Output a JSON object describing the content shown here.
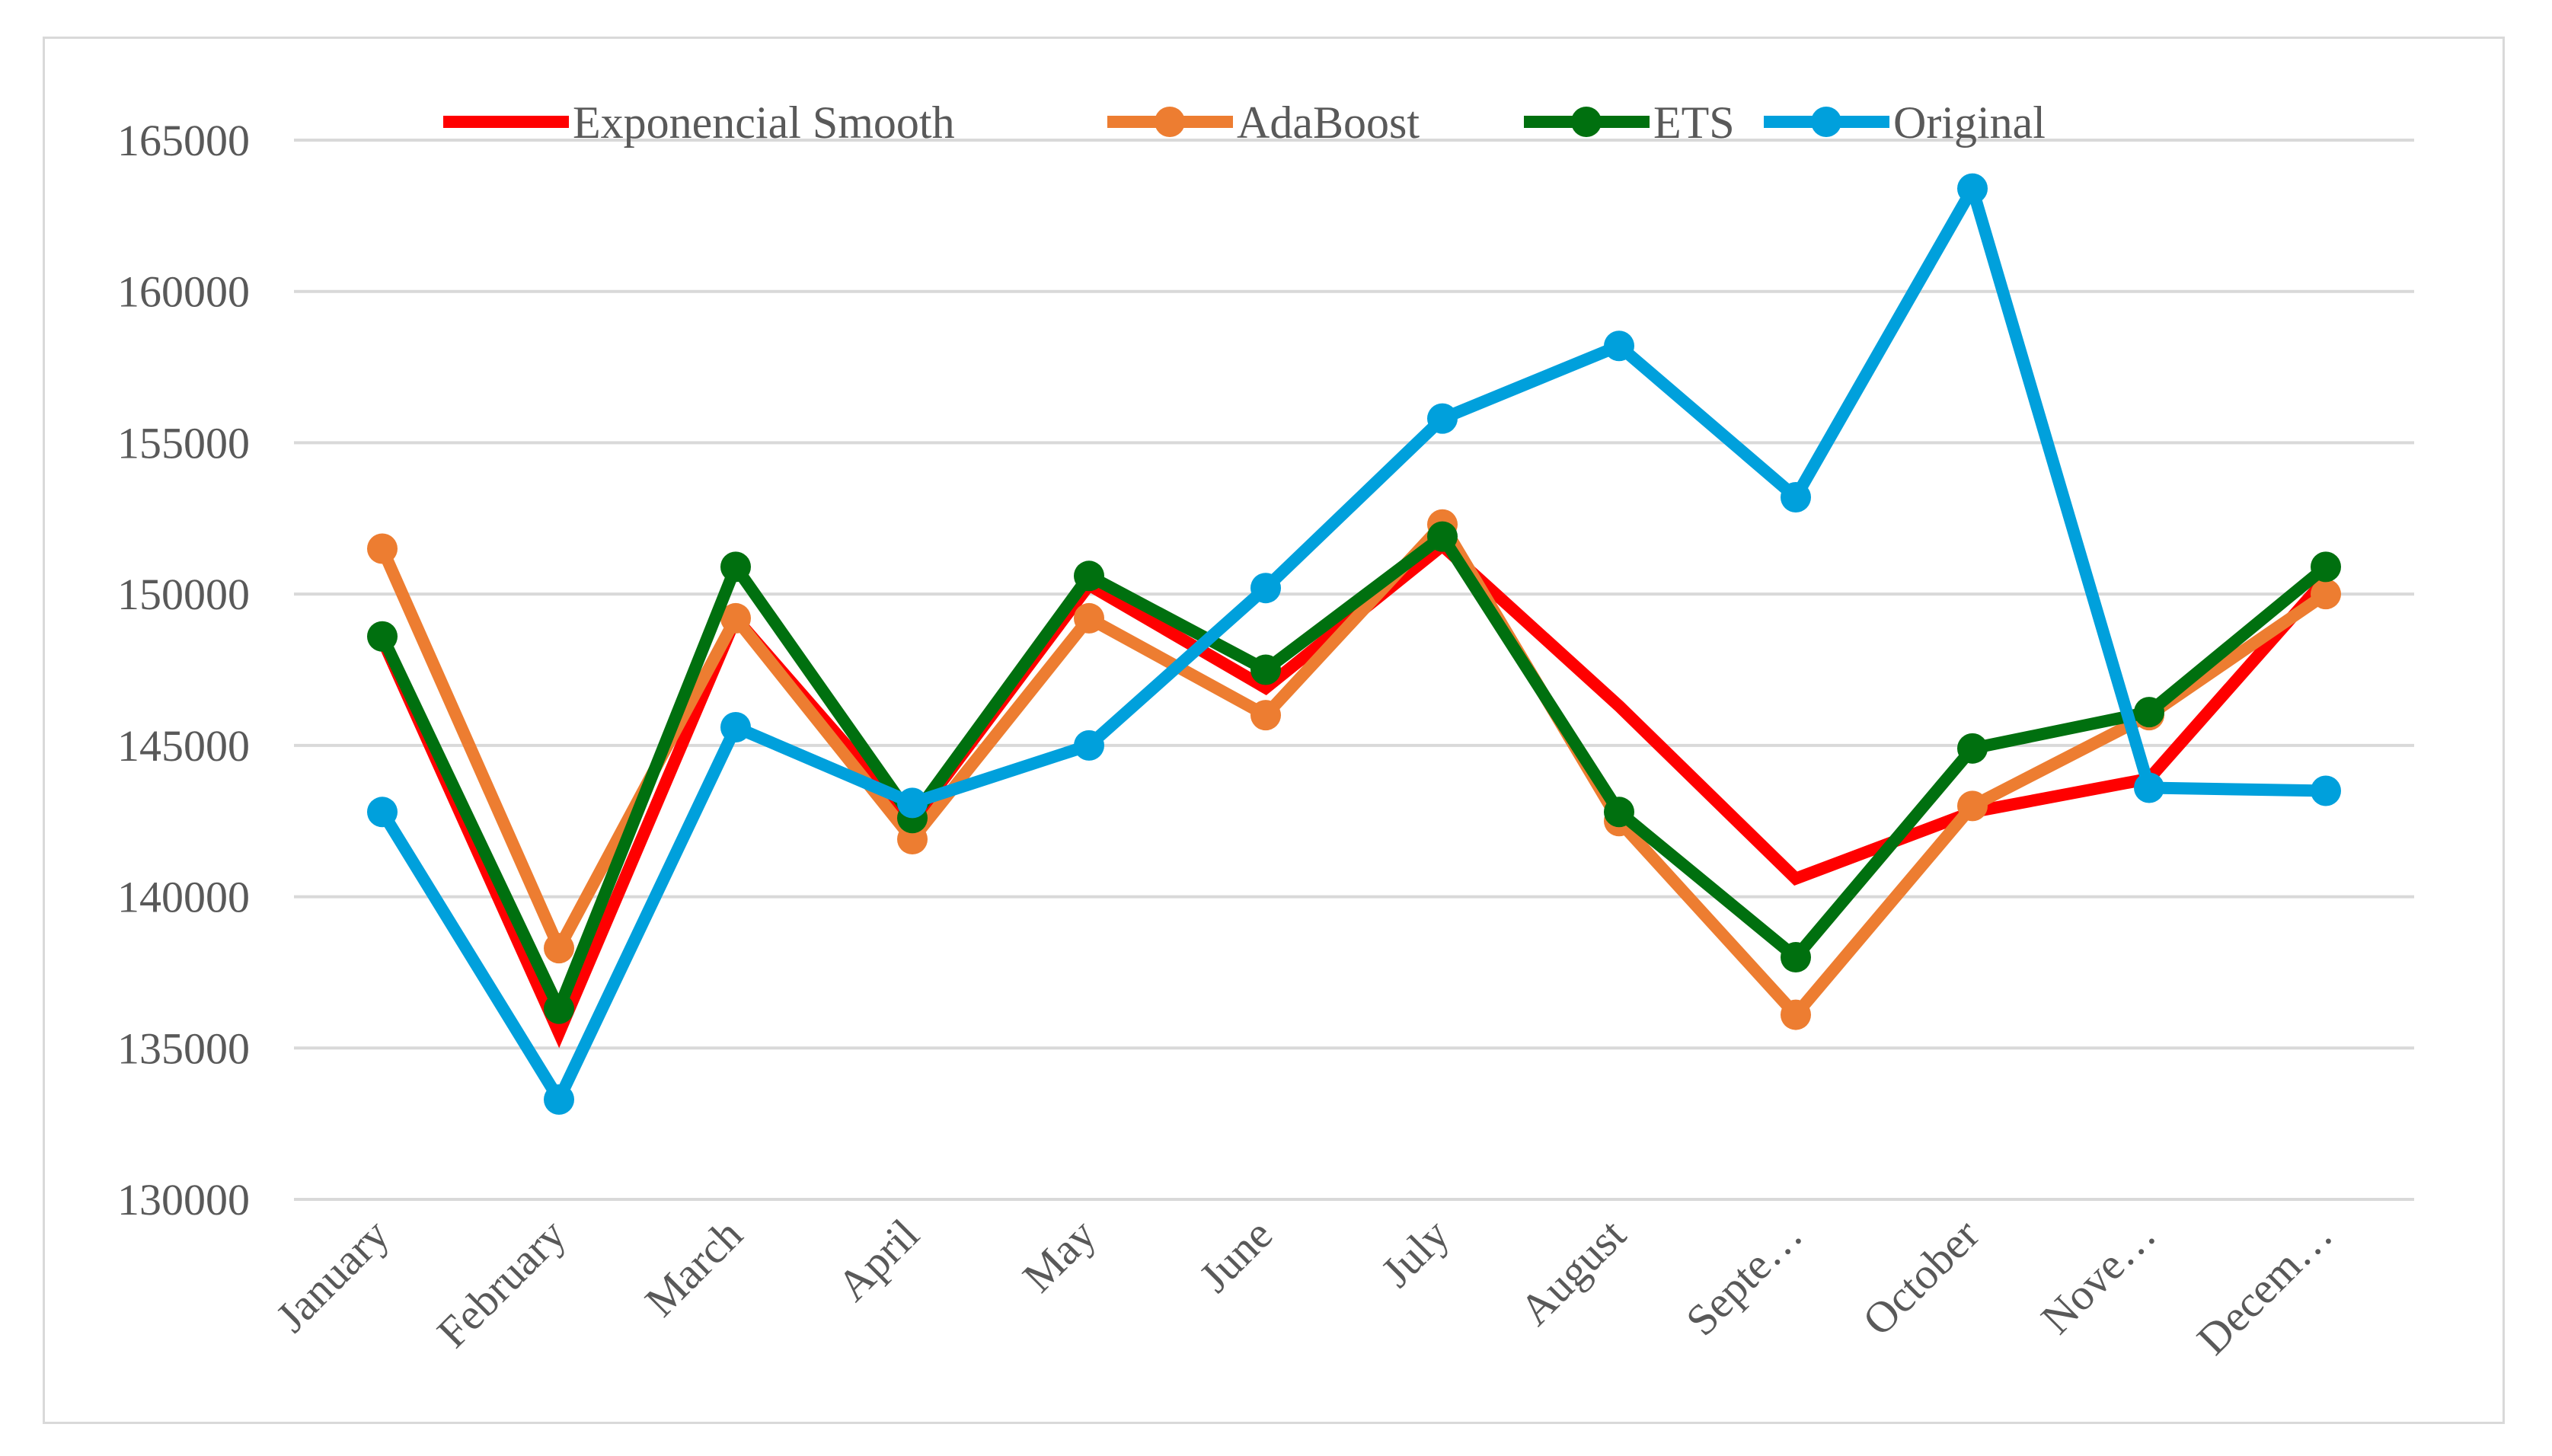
{
  "chart_data": {
    "type": "line",
    "title": "",
    "xlabel": "",
    "ylabel": "",
    "ylim": [
      130000,
      165000
    ],
    "y_ticks": [
      "130000",
      "135000",
      "140000",
      "145000",
      "150000",
      "155000",
      "160000",
      "165000"
    ],
    "y_tick_values": [
      130000,
      135000,
      140000,
      145000,
      150000,
      155000,
      160000,
      165000
    ],
    "grid": true,
    "legend_position": "top",
    "categories": [
      "January",
      "February",
      "March",
      "April",
      "May",
      "June",
      "July",
      "August",
      "Septe…",
      "October",
      "Nove…",
      "Decem…"
    ],
    "series": [
      {
        "name": "Exponencial Smooth",
        "color": "#ff0000",
        "markers": false,
        "values": [
          148500,
          135500,
          149200,
          142500,
          150300,
          146900,
          151600,
          146300,
          140600,
          142800,
          143900,
          150500
        ]
      },
      {
        "name": "AdaBoost",
        "color": "#ed7d31",
        "markers": true,
        "values": [
          151500,
          138300,
          149200,
          141900,
          149200,
          146000,
          152300,
          142500,
          136100,
          143000,
          146000,
          150000
        ]
      },
      {
        "name": "ETS",
        "color": "#00700f",
        "markers": true,
        "values": [
          148600,
          136300,
          150900,
          142600,
          150600,
          147500,
          151900,
          142800,
          138000,
          144900,
          146100,
          150900
        ]
      },
      {
        "name": "Original",
        "color": "#00a0dc",
        "markers": true,
        "values": [
          142800,
          133300,
          145600,
          143100,
          145000,
          150200,
          155800,
          158200,
          153200,
          163400,
          143600,
          143500
        ]
      }
    ]
  }
}
